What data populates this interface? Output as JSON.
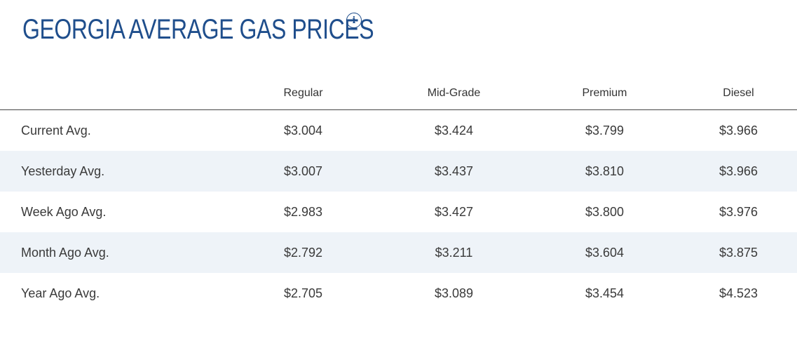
{
  "header": {
    "title": "GEORGIA AVERAGE GAS PRICES",
    "info_icon": "info-icon"
  },
  "table": {
    "columns": [
      "",
      "Regular",
      "Mid-Grade",
      "Premium",
      "Diesel"
    ],
    "rows": [
      {
        "label": "Current Avg.",
        "regular": "$3.004",
        "mid_grade": "$3.424",
        "premium": "$3.799",
        "diesel": "$3.966"
      },
      {
        "label": "Yesterday Avg.",
        "regular": "$3.007",
        "mid_grade": "$3.437",
        "premium": "$3.810",
        "diesel": "$3.966"
      },
      {
        "label": "Week Ago Avg.",
        "regular": "$2.983",
        "mid_grade": "$3.427",
        "premium": "$3.800",
        "diesel": "$3.976"
      },
      {
        "label": "Month Ago Avg.",
        "regular": "$2.792",
        "mid_grade": "$3.211",
        "premium": "$3.604",
        "diesel": "$3.875"
      },
      {
        "label": "Year Ago Avg.",
        "regular": "$2.705",
        "mid_grade": "$3.089",
        "premium": "$3.454",
        "diesel": "$4.523"
      }
    ]
  },
  "colors": {
    "title": "#1f4e8c",
    "stripe": "#eef3f8",
    "text": "#333333"
  }
}
